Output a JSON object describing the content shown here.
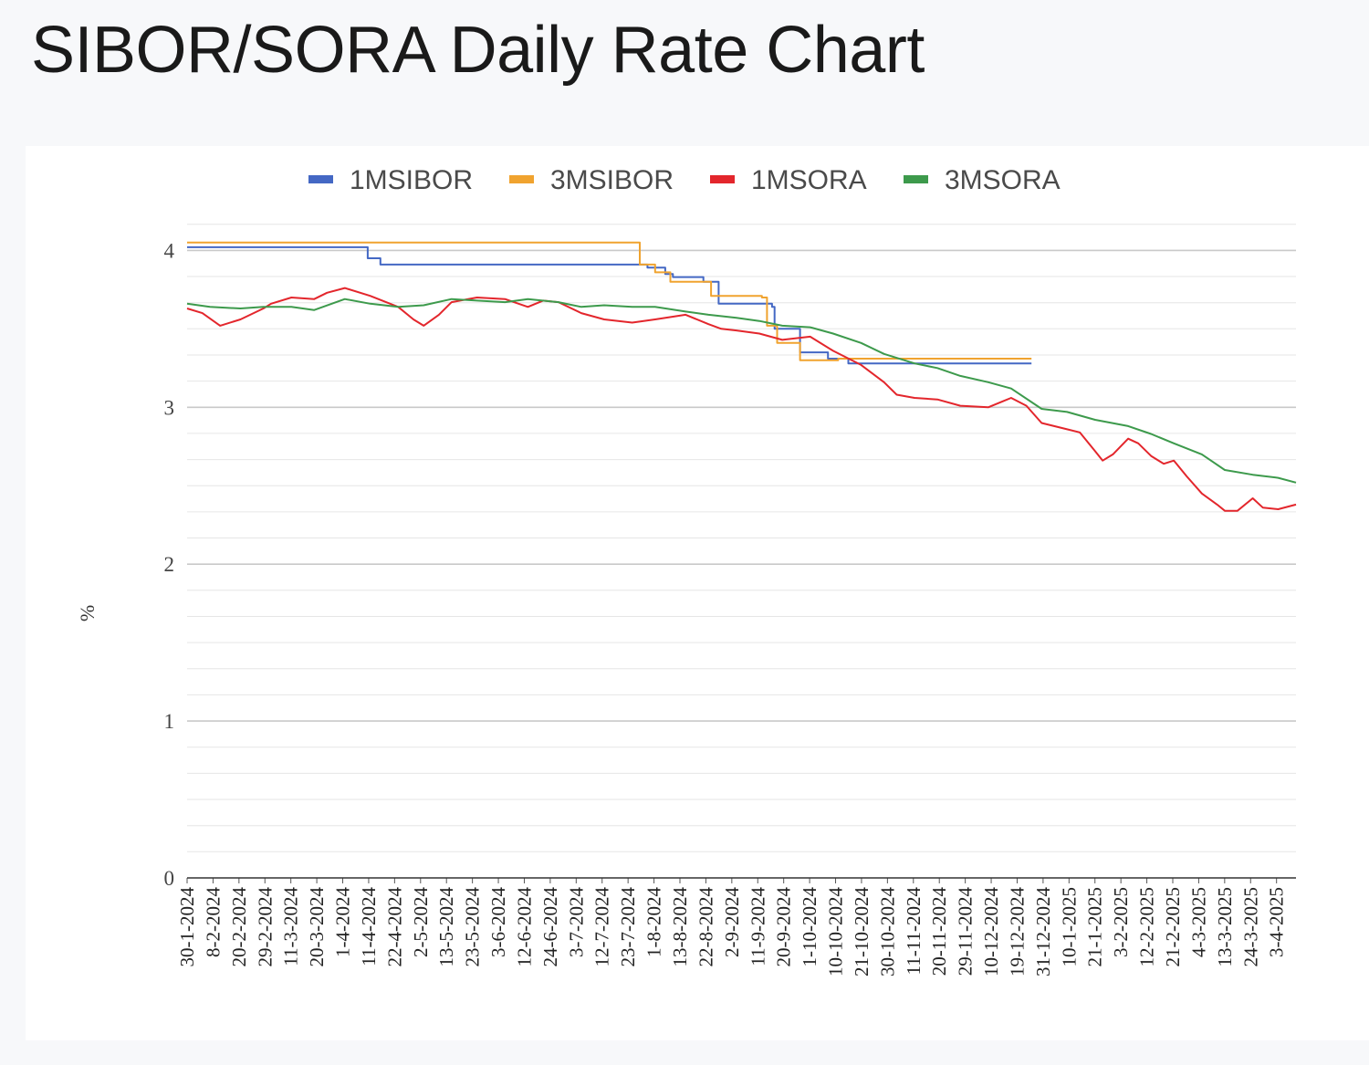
{
  "page": {
    "title": "SIBOR/SORA Daily Rate Chart"
  },
  "chart_data": {
    "type": "line",
    "title": "SIBOR/SORA Daily Rate Chart",
    "xlabel": "",
    "ylabel": "%",
    "ylim": [
      0,
      4.2
    ],
    "yticks": [
      0,
      1,
      2,
      3,
      4
    ],
    "grid": true,
    "legend_position": "top",
    "x_start": "30-1-2024",
    "x_end": "10-4-2025",
    "xtick_labels": [
      "30-1-2024",
      "8-2-2024",
      "20-2-2024",
      "29-2-2024",
      "11-3-2024",
      "20-3-2024",
      "1-4-2024",
      "11-4-2024",
      "22-4-2024",
      "2-5-2024",
      "13-5-2024",
      "23-5-2024",
      "3-6-2024",
      "12-6-2024",
      "24-6-2024",
      "3-7-2024",
      "12-7-2024",
      "23-7-2024",
      "1-8-2024",
      "13-8-2024",
      "22-8-2024",
      "2-9-2024",
      "11-9-2024",
      "20-9-2024",
      "1-10-2024",
      "10-10-2024",
      "21-10-2024",
      "30-10-2024",
      "11-11-2024",
      "20-11-2024",
      "29-11-2024",
      "10-12-2024",
      "19-12-2024",
      "31-12-2024",
      "10-1-2025",
      "21-1-2025",
      "3-2-2025",
      "12-2-2025",
      "21-2-2025",
      "4-3-2025",
      "13-3-2025",
      "24-3-2025",
      "3-4-2025"
    ],
    "series": [
      {
        "name": "1MSIBOR",
        "color": "#4468c4",
        "step": true,
        "points": [
          [
            "30-1-2024",
            4.02
          ],
          [
            "8-4-2024",
            4.02
          ],
          [
            "10-4-2024",
            3.95
          ],
          [
            "15-4-2024",
            3.91
          ],
          [
            "29-7-2024",
            3.89
          ],
          [
            "5-8-2024",
            3.85
          ],
          [
            "8-8-2024",
            3.83
          ],
          [
            "20-8-2024",
            3.8
          ],
          [
            "26-8-2024",
            3.66
          ],
          [
            "16-9-2024",
            3.64
          ],
          [
            "17-9-2024",
            3.5
          ],
          [
            "27-9-2024",
            3.35
          ],
          [
            "8-10-2024",
            3.31
          ],
          [
            "16-10-2024",
            3.28
          ],
          [
            "27-12-2024",
            3.28
          ]
        ]
      },
      {
        "name": "3MSIBOR",
        "color": "#f0a32f",
        "step": true,
        "points": [
          [
            "30-1-2024",
            4.05
          ],
          [
            "25-7-2024",
            4.05
          ],
          [
            "26-7-2024",
            3.91
          ],
          [
            "30-7-2024",
            3.91
          ],
          [
            "1-8-2024",
            3.86
          ],
          [
            "7-8-2024",
            3.8
          ],
          [
            "19-8-2024",
            3.8
          ],
          [
            "23-8-2024",
            3.71
          ],
          [
            "12-9-2024",
            3.7
          ],
          [
            "14-9-2024",
            3.52
          ],
          [
            "18-9-2024",
            3.41
          ],
          [
            "27-9-2024",
            3.3
          ],
          [
            "10-10-2024",
            3.3
          ],
          [
            "12-10-2024",
            3.31
          ],
          [
            "27-12-2024",
            3.31
          ]
        ]
      },
      {
        "name": "1MSORA",
        "color": "#e3262c",
        "step": false,
        "points": [
          [
            "30-1-2024",
            3.63
          ],
          [
            "5-2-2024",
            3.6
          ],
          [
            "12-2-2024",
            3.52
          ],
          [
            "20-2-2024",
            3.56
          ],
          [
            "29-2-2024",
            3.63
          ],
          [
            "3-3-2024",
            3.66
          ],
          [
            "11-3-2024",
            3.7
          ],
          [
            "20-3-2024",
            3.69
          ],
          [
            "25-3-2024",
            3.73
          ],
          [
            "1-4-2024",
            3.76
          ],
          [
            "11-4-2024",
            3.71
          ],
          [
            "22-4-2024",
            3.64
          ],
          [
            "28-4-2024",
            3.56
          ],
          [
            "2-5-2024",
            3.52
          ],
          [
            "8-5-2024",
            3.59
          ],
          [
            "13-5-2024",
            3.67
          ],
          [
            "23-5-2024",
            3.7
          ],
          [
            "3-6-2024",
            3.69
          ],
          [
            "12-6-2024",
            3.64
          ],
          [
            "18-6-2024",
            3.68
          ],
          [
            "24-6-2024",
            3.67
          ],
          [
            "3-7-2024",
            3.6
          ],
          [
            "12-7-2024",
            3.56
          ],
          [
            "23-7-2024",
            3.54
          ],
          [
            "1-8-2024",
            3.56
          ],
          [
            "13-8-2024",
            3.59
          ],
          [
            "22-8-2024",
            3.53
          ],
          [
            "27-8-2024",
            3.5
          ],
          [
            "2-9-2024",
            3.49
          ],
          [
            "11-9-2024",
            3.47
          ],
          [
            "20-9-2024",
            3.43
          ],
          [
            "1-10-2024",
            3.45
          ],
          [
            "10-10-2024",
            3.36
          ],
          [
            "21-10-2024",
            3.27
          ],
          [
            "30-10-2024",
            3.16
          ],
          [
            "4-11-2024",
            3.08
          ],
          [
            "11-11-2024",
            3.06
          ],
          [
            "20-11-2024",
            3.05
          ],
          [
            "29-11-2024",
            3.01
          ],
          [
            "10-12-2024",
            3.0
          ],
          [
            "16-12-2024",
            3.04
          ],
          [
            "19-12-2024",
            3.06
          ],
          [
            "25-12-2024",
            3.01
          ],
          [
            "31-12-2024",
            2.9
          ],
          [
            "10-1-2025",
            2.86
          ],
          [
            "15-1-2025",
            2.84
          ],
          [
            "21-1-2025",
            2.72
          ],
          [
            "24-1-2025",
            2.66
          ],
          [
            "28-1-2025",
            2.7
          ],
          [
            "3-2-2025",
            2.8
          ],
          [
            "7-2-2025",
            2.77
          ],
          [
            "12-2-2025",
            2.69
          ],
          [
            "17-2-2025",
            2.64
          ],
          [
            "21-2-2025",
            2.66
          ],
          [
            "26-2-2025",
            2.56
          ],
          [
            "4-3-2025",
            2.45
          ],
          [
            "10-3-2025",
            2.38
          ],
          [
            "13-3-2025",
            2.34
          ],
          [
            "18-3-2025",
            2.34
          ],
          [
            "24-3-2025",
            2.42
          ],
          [
            "28-3-2025",
            2.36
          ],
          [
            "3-4-2025",
            2.35
          ],
          [
            "10-4-2025",
            2.38
          ]
        ]
      },
      {
        "name": "3MSORA",
        "color": "#3d9a4c",
        "step": false,
        "points": [
          [
            "30-1-2024",
            3.66
          ],
          [
            "8-2-2024",
            3.64
          ],
          [
            "20-2-2024",
            3.63
          ],
          [
            "29-2-2024",
            3.64
          ],
          [
            "11-3-2024",
            3.64
          ],
          [
            "20-3-2024",
            3.62
          ],
          [
            "1-4-2024",
            3.69
          ],
          [
            "11-4-2024",
            3.66
          ],
          [
            "22-4-2024",
            3.64
          ],
          [
            "2-5-2024",
            3.65
          ],
          [
            "13-5-2024",
            3.69
          ],
          [
            "23-5-2024",
            3.68
          ],
          [
            "3-6-2024",
            3.67
          ],
          [
            "12-6-2024",
            3.69
          ],
          [
            "24-6-2024",
            3.67
          ],
          [
            "3-7-2024",
            3.64
          ],
          [
            "12-7-2024",
            3.65
          ],
          [
            "23-7-2024",
            3.64
          ],
          [
            "1-8-2024",
            3.64
          ],
          [
            "13-8-2024",
            3.61
          ],
          [
            "22-8-2024",
            3.59
          ],
          [
            "2-9-2024",
            3.57
          ],
          [
            "11-9-2024",
            3.55
          ],
          [
            "20-9-2024",
            3.52
          ],
          [
            "1-10-2024",
            3.51
          ],
          [
            "10-10-2024",
            3.47
          ],
          [
            "21-10-2024",
            3.41
          ],
          [
            "30-10-2024",
            3.34
          ],
          [
            "11-11-2024",
            3.28
          ],
          [
            "20-11-2024",
            3.25
          ],
          [
            "29-11-2024",
            3.2
          ],
          [
            "10-12-2024",
            3.16
          ],
          [
            "19-12-2024",
            3.12
          ],
          [
            "31-12-2024",
            2.99
          ],
          [
            "10-1-2025",
            2.97
          ],
          [
            "21-1-2025",
            2.92
          ],
          [
            "3-2-2025",
            2.88
          ],
          [
            "12-2-2025",
            2.83
          ],
          [
            "21-2-2025",
            2.77
          ],
          [
            "4-3-2025",
            2.7
          ],
          [
            "13-3-2025",
            2.6
          ],
          [
            "24-3-2025",
            2.57
          ],
          [
            "3-4-2025",
            2.55
          ],
          [
            "10-4-2025",
            2.52
          ]
        ]
      }
    ]
  }
}
